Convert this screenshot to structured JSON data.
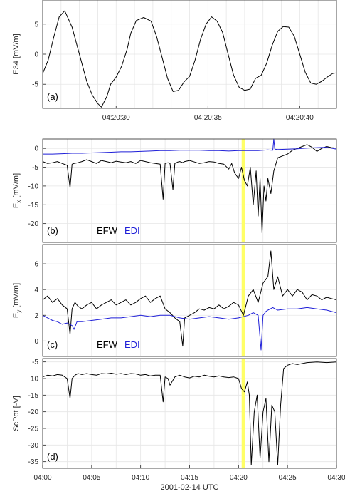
{
  "chart_data": [
    {
      "type": "line",
      "panel_label": "(a)",
      "ylabel": "E34 [mV/m]",
      "ylim": [
        -9,
        9
      ],
      "yticks": [
        -5,
        0,
        5
      ],
      "xticks": [
        "04:20:30",
        "04:20:35",
        "04:20:40"
      ],
      "xtick_seconds": [
        30,
        35,
        40
      ],
      "xlim_seconds": [
        26.0,
        42.0
      ],
      "series": [
        {
          "color": "#000000",
          "x": [
            26.0,
            26.3,
            26.6,
            26.9,
            27.2,
            27.6,
            28.0,
            28.4,
            28.7,
            29.0,
            29.2,
            29.5,
            29.7,
            30.0,
            30.3,
            30.6,
            30.8,
            31.1,
            31.5,
            31.9,
            32.2,
            32.5,
            32.8,
            33.1,
            33.4,
            33.7,
            34.0,
            34.3,
            34.6,
            34.9,
            35.2,
            35.5,
            35.8,
            36.1,
            36.4,
            36.7,
            37.0,
            37.3,
            37.6,
            37.9,
            38.2,
            38.5,
            38.8,
            39.1,
            39.4,
            39.7,
            40.0,
            40.3,
            40.6,
            40.9,
            41.2,
            41.5,
            41.8,
            42.0
          ],
          "y": [
            -3.2,
            -1.0,
            2.8,
            6.2,
            7.2,
            4.5,
            0.0,
            -4.5,
            -6.8,
            -8.2,
            -8.8,
            -7.0,
            -5.0,
            -3.8,
            -2.0,
            0.8,
            3.5,
            5.6,
            6.1,
            5.5,
            3.0,
            -0.5,
            -4.0,
            -6.2,
            -6.0,
            -4.6,
            -3.7,
            -1.0,
            2.5,
            5.0,
            6.2,
            5.5,
            3.6,
            0.0,
            -3.5,
            -5.5,
            -6.0,
            -5.8,
            -4.0,
            -3.5,
            -1.5,
            1.5,
            3.8,
            4.6,
            4.5,
            3.0,
            0.0,
            -3.0,
            -4.8,
            -5.0,
            -4.5,
            -3.8,
            -3.2,
            -3.1
          ]
        }
      ]
    },
    {
      "type": "line",
      "panel_label": "(b)",
      "ylabel_main": "E",
      "ylabel_sub": "x",
      "ylabel_rest": " [mV/m]",
      "ylim": [
        -25,
        2.5
      ],
      "yticks": [
        -20,
        -15,
        -10,
        -5,
        0
      ],
      "xlim_minutes": [
        0,
        30
      ],
      "highlight_minute": 20.5,
      "highlight_color": "#ffff66",
      "legend": [
        {
          "text": "EFW",
          "color": "#000000"
        },
        {
          "text": "EDI",
          "color": "#1f1fd8"
        }
      ],
      "series": [
        {
          "name": "EFW",
          "color": "#000000",
          "x": [
            0,
            0.5,
            1,
            1.5,
            2,
            2.5,
            2.8,
            3.0,
            3.2,
            3.6,
            4,
            4.5,
            5,
            5.5,
            6,
            6.5,
            7,
            7.5,
            8,
            8.5,
            9,
            9.5,
            10,
            10.5,
            11,
            11.5,
            12,
            12.3,
            12.5,
            12.8,
            13,
            13.3,
            13.5,
            13.8,
            14,
            14.3,
            14.5,
            15,
            15.5,
            16,
            16.5,
            17,
            17.5,
            18,
            18.5,
            19,
            19.3,
            19.6,
            20,
            20.3,
            20.6,
            20.9,
            21.2,
            21.5,
            21.8,
            22.0,
            22.2,
            22.4,
            22.6,
            22.8,
            23.0,
            23.3,
            23.6,
            24,
            24.5,
            25,
            25.5,
            26,
            26.5,
            27,
            27.5,
            28,
            28.5,
            29,
            29.5,
            30
          ],
          "y": [
            -3.5,
            -4,
            -3.8,
            -3.5,
            -4,
            -4.5,
            -10.5,
            -4.2,
            -4,
            -3.8,
            -3.5,
            -3,
            -3.5,
            -4,
            -3.2,
            -3.5,
            -3.8,
            -3.4,
            -3.6,
            -3.8,
            -3.5,
            -4,
            -3.2,
            -3.5,
            -3.8,
            -4,
            -4.2,
            -13.5,
            -4,
            -3.8,
            -4,
            -11,
            -4,
            -3.6,
            -3.5,
            -3.8,
            -3.5,
            -3.2,
            -3.6,
            -4,
            -3.8,
            -3.5,
            -3.6,
            -4,
            -4.2,
            -5.5,
            -4,
            -6.5,
            -8,
            -5,
            -8.5,
            -10,
            -5,
            -15,
            -6,
            -18,
            -8,
            -22.5,
            -10,
            -14,
            -8,
            -12,
            -6,
            -2.5,
            -2,
            -1.5,
            -0.5,
            0,
            0.5,
            1,
            0.3,
            -0.8,
            0,
            0.5,
            0.2,
            0.1
          ]
        },
        {
          "name": "EDI",
          "color": "#1f1fd8",
          "x": [
            0,
            1,
            2,
            3,
            4,
            5,
            6,
            7,
            8,
            9,
            10,
            11,
            12,
            13,
            14,
            15,
            16,
            17,
            18,
            19,
            20,
            21,
            22,
            23,
            23.5,
            23.6,
            23.7,
            24,
            25,
            26,
            27,
            28,
            29,
            30
          ],
          "y": [
            -1.5,
            -1.5,
            -1.4,
            -1.3,
            -1.3,
            -1.2,
            -1.1,
            -1.0,
            -0.9,
            -0.9,
            -0.8,
            -0.7,
            -0.6,
            -0.6,
            -0.5,
            -0.5,
            -0.5,
            -0.6,
            -0.6,
            -0.7,
            -0.6,
            -0.6,
            -0.6,
            -0.4,
            -0.5,
            3.5,
            -0.2,
            -0.3,
            -0.2,
            -0.1,
            0.1,
            0.2,
            0.3,
            -0.2
          ]
        }
      ]
    },
    {
      "type": "line",
      "panel_label": "(c)",
      "ylabel_main": "E",
      "ylabel_sub": "y",
      "ylabel_rest": " [mV/m]",
      "ylim": [
        -1.2,
        7.5
      ],
      "yticks": [
        0,
        2,
        4,
        6
      ],
      "xlim_minutes": [
        0,
        30
      ],
      "highlight_minute": 20.5,
      "highlight_color": "#ffff66",
      "legend": [
        {
          "text": "EFW",
          "color": "#000000"
        },
        {
          "text": "EDI",
          "color": "#1f1fd8"
        }
      ],
      "series": [
        {
          "name": "EFW",
          "color": "#000000",
          "x": [
            0,
            0.5,
            1,
            1.5,
            2,
            2.5,
            2.8,
            3.0,
            3.3,
            3.6,
            4,
            4.5,
            5,
            5.5,
            6,
            6.5,
            7,
            7.5,
            8,
            8.5,
            9,
            9.5,
            10,
            10.5,
            11,
            11.5,
            12,
            12.5,
            13,
            13.5,
            14,
            14.3,
            14.5,
            15,
            15.5,
            16,
            16.5,
            17,
            17.5,
            18,
            18.5,
            19,
            19.5,
            20,
            20.5,
            21,
            21.5,
            22,
            22.5,
            23,
            23.3,
            23.6,
            24,
            24.5,
            25,
            25.5,
            26,
            26.5,
            27,
            27.5,
            28,
            28.5,
            29,
            29.5,
            30
          ],
          "y": [
            3.2,
            3.5,
            3.0,
            3.3,
            2.8,
            2.5,
            0.5,
            2.5,
            3.0,
            2.7,
            2.5,
            2.8,
            3.0,
            2.5,
            2.8,
            3.0,
            3.2,
            2.8,
            3.0,
            3.2,
            2.8,
            3.0,
            3.3,
            3.5,
            3.0,
            3.3,
            3.5,
            2.5,
            2.2,
            1.8,
            1.5,
            -0.4,
            1.8,
            2.0,
            2.2,
            2.5,
            2.4,
            2.6,
            2.5,
            2.8,
            2.5,
            2.7,
            3.0,
            2.8,
            2.0,
            3.5,
            4.0,
            3.0,
            4.5,
            5.0,
            7.0,
            4.0,
            5.0,
            3.5,
            4.0,
            3.5,
            4.0,
            3.8,
            3.2,
            3.6,
            3.5,
            3.2,
            3.4,
            3.3,
            3.2
          ]
        },
        {
          "name": "EDI",
          "color": "#1f1fd8",
          "x": [
            0,
            0.5,
            1,
            1.5,
            2,
            2.5,
            3,
            3.2,
            3.5,
            4,
            5,
            6,
            7,
            8,
            9,
            10,
            11,
            12,
            13,
            14,
            15,
            16,
            17,
            18,
            19,
            20,
            21,
            21.5,
            22,
            22.3,
            22.5,
            22.8,
            23,
            23.5,
            24,
            25,
            26,
            27,
            28,
            29,
            30
          ],
          "y": [
            2.0,
            1.8,
            1.6,
            1.5,
            1.3,
            1.4,
            1.2,
            0.9,
            1.5,
            1.5,
            1.6,
            1.7,
            1.8,
            1.8,
            1.9,
            2.0,
            1.9,
            2.0,
            2.0,
            1.8,
            1.7,
            1.8,
            1.9,
            1.8,
            1.7,
            1.8,
            2.0,
            2.2,
            2.0,
            -0.7,
            2.0,
            2.3,
            2.4,
            2.6,
            2.4,
            2.5,
            2.5,
            2.6,
            2.5,
            2.4,
            2.2
          ]
        }
      ]
    },
    {
      "type": "line",
      "panel_label": "(d)",
      "ylabel": "ScPot [-V]",
      "ylim": [
        -37,
        -4
      ],
      "yticks": [
        -35,
        -30,
        -25,
        -20,
        -15,
        -10,
        -5
      ],
      "xlim_minutes": [
        0,
        30
      ],
      "highlight_minute": 20.5,
      "highlight_color": "#ffff66",
      "xticks": [
        "04:00",
        "04:05",
        "04:10",
        "04:15",
        "04:20",
        "04:25",
        "04:30"
      ],
      "xtick_minutes": [
        0,
        5,
        10,
        15,
        20,
        25,
        30
      ],
      "xlabel": "2001-02-14 UTC",
      "series": [
        {
          "color": "#000000",
          "x": [
            0,
            0.5,
            1,
            1.5,
            2,
            2.5,
            2.8,
            3.0,
            3.3,
            3.6,
            4,
            4.5,
            5,
            5.5,
            6,
            6.5,
            7,
            7.5,
            8,
            8.5,
            9,
            9.5,
            10,
            10.5,
            11,
            11.5,
            12,
            12.3,
            12.5,
            12.8,
            13,
            13.5,
            14,
            14.5,
            15,
            15.5,
            16,
            16.5,
            17,
            17.5,
            18,
            18.5,
            19,
            19.5,
            20,
            20.3,
            20.6,
            20.9,
            21.1,
            21.3,
            21.6,
            21.9,
            22.2,
            22.5,
            22.8,
            23.1,
            23.4,
            23.7,
            24.0,
            24.3,
            24.6,
            25,
            25.5,
            26,
            27,
            28,
            29,
            30
          ],
          "y": [
            -9.5,
            -9,
            -9.2,
            -8.8,
            -9,
            -10,
            -16,
            -10,
            -9,
            -8.5,
            -8.8,
            -8.5,
            -8.8,
            -9,
            -8.5,
            -8.6,
            -8.4,
            -8.7,
            -8.5,
            -8.8,
            -8.5,
            -8.6,
            -9,
            -8.8,
            -9.2,
            -9,
            -9,
            -17,
            -9.5,
            -10,
            -12,
            -9.5,
            -9,
            -9.5,
            -9.8,
            -9.3,
            -9.5,
            -9,
            -9.3,
            -9.5,
            -9.2,
            -9.5,
            -9.7,
            -9.5,
            -10,
            -13,
            -14,
            -11,
            -15,
            -36,
            -20,
            -15,
            -34,
            -20,
            -16,
            -35,
            -18,
            -20,
            -36,
            -18,
            -7,
            -6,
            -5.5,
            -5.8,
            -5.2,
            -5,
            -5.2,
            -5
          ]
        }
      ]
    },
    {
      "type": "bar",
      "decoration": "blank spacer so strictly nothing"
    }
  ]
}
